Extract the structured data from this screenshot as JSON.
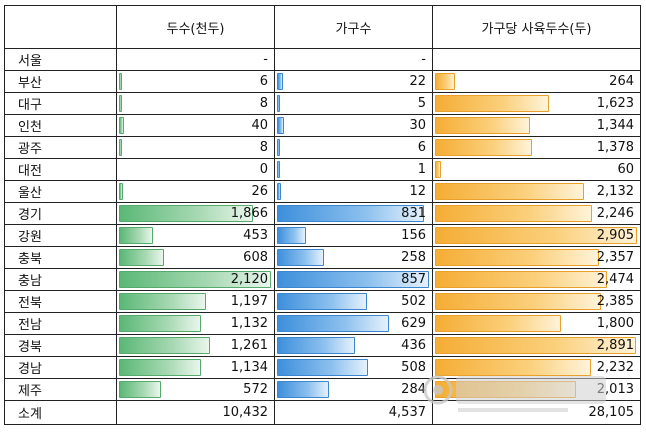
{
  "chart_data": {
    "type": "table",
    "columns": [
      "",
      "두수(천두)",
      "가구수",
      "가구당 사육두수(두)"
    ],
    "rows": [
      {
        "name": "서울",
        "heads": "-",
        "households": "-",
        "per_household": ""
      },
      {
        "name": "부산",
        "heads": "6",
        "households": "22",
        "per_household": "264"
      },
      {
        "name": "대구",
        "heads": "8",
        "households": "5",
        "per_household": "1,623"
      },
      {
        "name": "인천",
        "heads": "40",
        "households": "30",
        "per_household": "1,344"
      },
      {
        "name": "광주",
        "heads": "8",
        "households": "6",
        "per_household": "1,378"
      },
      {
        "name": "대전",
        "heads": "0",
        "households": "1",
        "per_household": "60"
      },
      {
        "name": "울산",
        "heads": "26",
        "households": "12",
        "per_household": "2,132"
      },
      {
        "name": "경기",
        "heads": "1,866",
        "households": "831",
        "per_household": "2,246"
      },
      {
        "name": "강원",
        "heads": "453",
        "households": "156",
        "per_household": "2,905"
      },
      {
        "name": "충북",
        "heads": "608",
        "households": "258",
        "per_household": "2,357"
      },
      {
        "name": "충남",
        "heads": "2,120",
        "households": "857",
        "per_household": "2,474"
      },
      {
        "name": "전북",
        "heads": "1,197",
        "households": "502",
        "per_household": "2,385"
      },
      {
        "name": "전남",
        "heads": "1,132",
        "households": "629",
        "per_household": "1,800"
      },
      {
        "name": "경북",
        "heads": "1,261",
        "households": "436",
        "per_household": "2,891"
      },
      {
        "name": "경남",
        "heads": "1,134",
        "households": "508",
        "per_household": "2,232"
      },
      {
        "name": "제주",
        "heads": "572",
        "households": "284",
        "per_household": "2,013"
      }
    ],
    "total": {
      "name": "소계",
      "heads": "10,432",
      "households": "4,537",
      "per_household": "28,105"
    },
    "bar_colors": {
      "heads": "#5bb877",
      "households": "#3d8fdc",
      "per_household": "#f5ad35"
    }
  },
  "watermark": {
    "text": "돼지와사람"
  }
}
